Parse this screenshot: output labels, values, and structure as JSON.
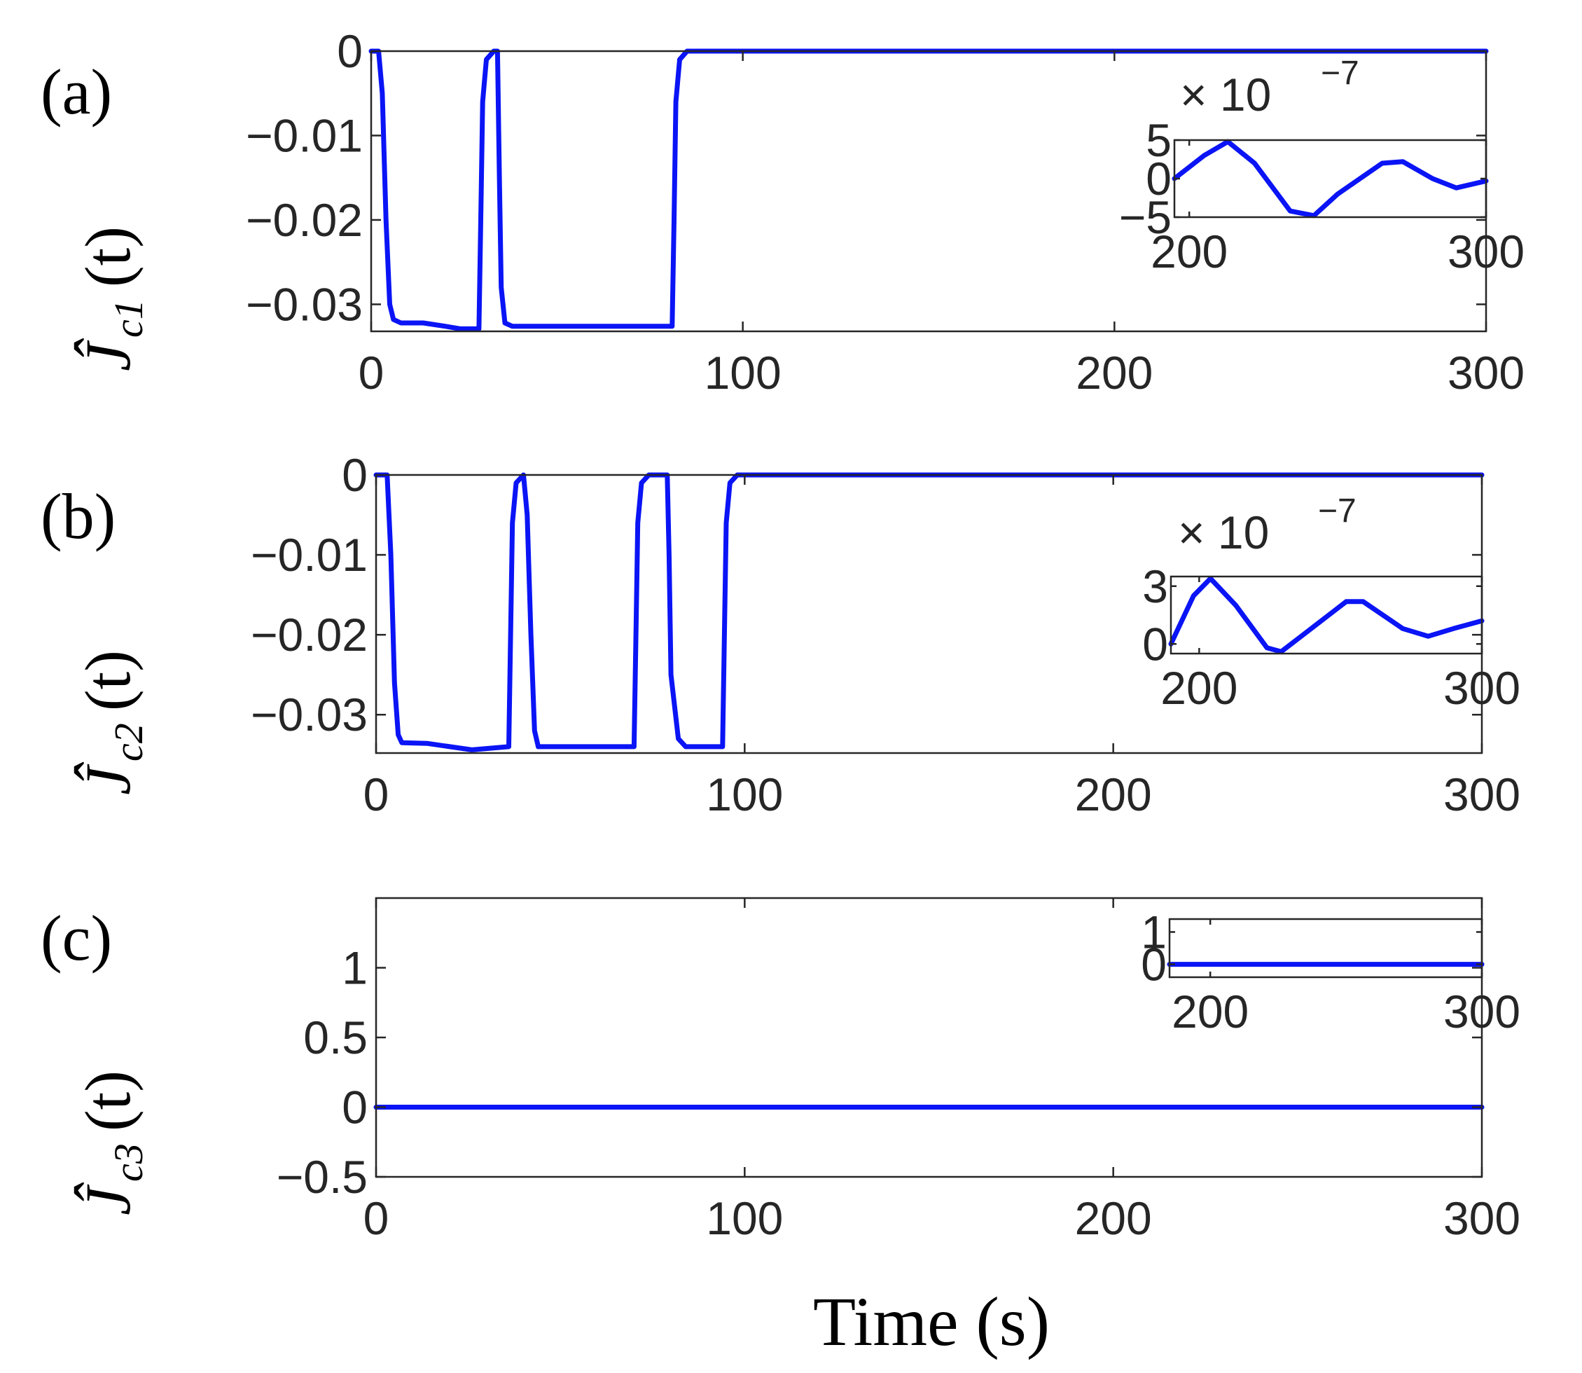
{
  "colors": {
    "series": "#0a14f5",
    "axis": "#262626",
    "background": "#ffffff"
  },
  "xlabel": "Time (s)",
  "panels": [
    {
      "label": "(a)",
      "ylabel": {
        "main": "Ĵ",
        "sub": "c1",
        "arg": "(t)"
      },
      "main_ticks": {
        "x": [
          "0",
          "100",
          "200",
          "300"
        ],
        "y": [
          "0",
          "−0.01",
          "−0.02",
          "−0.03"
        ]
      },
      "inset": {
        "multiplier": "× 10",
        "exponent": "−7",
        "x_ticks": [
          "200",
          "300"
        ],
        "y_ticks": [
          "5",
          "0",
          "−5"
        ]
      }
    },
    {
      "label": "(b)",
      "ylabel": {
        "main": "Ĵ",
        "sub": "c2",
        "arg": "(t)"
      },
      "main_ticks": {
        "x": [
          "0",
          "100",
          "200",
          "300"
        ],
        "y": [
          "0",
          "−0.01",
          "−0.02",
          "−0.03"
        ]
      },
      "inset": {
        "multiplier": "× 10",
        "exponent": "−7",
        "x_ticks": [
          "200",
          "300"
        ],
        "y_ticks": [
          "3",
          "0"
        ]
      }
    },
    {
      "label": "(c)",
      "ylabel": {
        "main": "Ĵ",
        "sub": "c3",
        "arg": "(t)"
      },
      "main_ticks": {
        "x": [
          "0",
          "100",
          "200",
          "300"
        ],
        "y": [
          "1",
          "0.5",
          "0",
          "−0.5"
        ]
      },
      "inset": {
        "multiplier": "",
        "exponent": "",
        "x_ticks": [
          "200",
          "300"
        ],
        "y_ticks": [
          "1",
          "0"
        ]
      }
    }
  ],
  "chart_data": [
    {
      "type": "line",
      "panel": "a",
      "xlim": [
        0,
        300
      ],
      "ylim": [
        -0.0332,
        0
      ],
      "x_ticks": [
        0,
        100,
        200,
        300
      ],
      "y_ticks": [
        0,
        -0.01,
        -0.02,
        -0.03
      ],
      "series": [
        {
          "points": [
            [
              0,
              0
            ],
            [
              2,
              0
            ],
            [
              3,
              -0.005
            ],
            [
              4,
              -0.02
            ],
            [
              5,
              -0.03
            ],
            [
              6,
              -0.0318
            ],
            [
              8,
              -0.0322
            ],
            [
              14,
              -0.0322
            ],
            [
              20,
              -0.0326
            ],
            [
              24,
              -0.0329
            ],
            [
              29,
              -0.0329
            ],
            [
              29.5,
              -0.02
            ],
            [
              30,
              -0.006
            ],
            [
              31,
              -0.001
            ],
            [
              33,
              0
            ],
            [
              34,
              0
            ],
            [
              34.5,
              -0.015
            ],
            [
              35,
              -0.028
            ],
            [
              36,
              -0.0322
            ],
            [
              38,
              -0.0326
            ],
            [
              81,
              -0.0326
            ],
            [
              81.5,
              -0.02
            ],
            [
              82,
              -0.006
            ],
            [
              83,
              -0.001
            ],
            [
              85,
              0
            ],
            [
              300,
              0
            ]
          ]
        }
      ],
      "inset": {
        "xlim": [
          195,
          300
        ],
        "ylim": [
          -5e-07,
          5e-07
        ],
        "x_ticks": [
          200,
          300
        ],
        "y_ticks": [
          5e-07,
          0,
          -5e-07
        ],
        "series": [
          {
            "points": [
              [
                195,
                0
              ],
              [
                205,
                3e-07
              ],
              [
                213,
                4.8e-07
              ],
              [
                222,
                2e-07
              ],
              [
                234,
                -4.2e-07
              ],
              [
                242,
                -4.8e-07
              ],
              [
                250,
                -2e-07
              ],
              [
                265,
                2e-07
              ],
              [
                272,
                2.2e-07
              ],
              [
                282,
                0
              ],
              [
                290,
                -1.2e-07
              ],
              [
                300,
                -3e-08
              ]
            ]
          }
        ]
      }
    },
    {
      "type": "line",
      "panel": "b",
      "xlim": [
        0,
        300
      ],
      "ylim": [
        -0.0348,
        0
      ],
      "x_ticks": [
        0,
        100,
        200,
        300
      ],
      "y_ticks": [
        0,
        -0.01,
        -0.02,
        -0.03
      ],
      "series": [
        {
          "points": [
            [
              0,
              0
            ],
            [
              3,
              0
            ],
            [
              4,
              -0.01
            ],
            [
              5,
              -0.026
            ],
            [
              6,
              -0.0325
            ],
            [
              7,
              -0.0335
            ],
            [
              14,
              -0.0336
            ],
            [
              20,
              -0.034
            ],
            [
              26,
              -0.0344
            ],
            [
              36,
              -0.034
            ],
            [
              36.5,
              -0.02
            ],
            [
              37,
              -0.006
            ],
            [
              38,
              -0.001
            ],
            [
              40,
              0
            ],
            [
              41,
              -0.005
            ],
            [
              42,
              -0.02
            ],
            [
              43,
              -0.032
            ],
            [
              44,
              -0.034
            ],
            [
              70,
              -0.034
            ],
            [
              70.5,
              -0.02
            ],
            [
              71,
              -0.006
            ],
            [
              72,
              -0.001
            ],
            [
              74,
              0
            ],
            [
              79,
              0
            ],
            [
              79.5,
              -0.01
            ],
            [
              80,
              -0.025
            ],
            [
              82,
              -0.033
            ],
            [
              84,
              -0.034
            ],
            [
              94,
              -0.034
            ],
            [
              94.5,
              -0.02
            ],
            [
              95,
              -0.006
            ],
            [
              96,
              -0.001
            ],
            [
              98,
              0
            ],
            [
              300,
              0
            ]
          ]
        }
      ],
      "inset": {
        "xlim": [
          190,
          300
        ],
        "ylim": [
          -5e-08,
          3.5e-07
        ],
        "x_ticks": [
          200,
          300
        ],
        "y_ticks": [
          3e-07,
          0
        ],
        "series": [
          {
            "points": [
              [
                190,
                0
              ],
              [
                198,
                2.5e-07
              ],
              [
                204,
                3.4e-07
              ],
              [
                213,
                2e-07
              ],
              [
                224,
                -2e-08
              ],
              [
                229,
                -4e-08
              ],
              [
                237,
                5e-08
              ],
              [
                252,
                2.2e-07
              ],
              [
                258,
                2.2e-07
              ],
              [
                272,
                8e-08
              ],
              [
                281,
                4e-08
              ],
              [
                290,
                8e-08
              ],
              [
                300,
                1.2e-07
              ]
            ]
          }
        ]
      }
    },
    {
      "type": "line",
      "panel": "c",
      "xlim": [
        0,
        300
      ],
      "ylim": [
        -0.5,
        1.5
      ],
      "x_ticks": [
        0,
        100,
        200,
        300
      ],
      "y_ticks": [
        1,
        0.5,
        0,
        -0.5
      ],
      "series": [
        {
          "points": [
            [
              0,
              0
            ],
            [
              300,
              0
            ]
          ]
        }
      ],
      "inset": {
        "xlim": [
          185,
          300
        ],
        "ylim": [
          -0.4,
          1.4
        ],
        "x_ticks": [
          200,
          300
        ],
        "y_ticks": [
          1,
          0
        ],
        "series": [
          {
            "points": [
              [
                185,
                0
              ],
              [
                300,
                0
              ]
            ]
          }
        ]
      }
    }
  ]
}
